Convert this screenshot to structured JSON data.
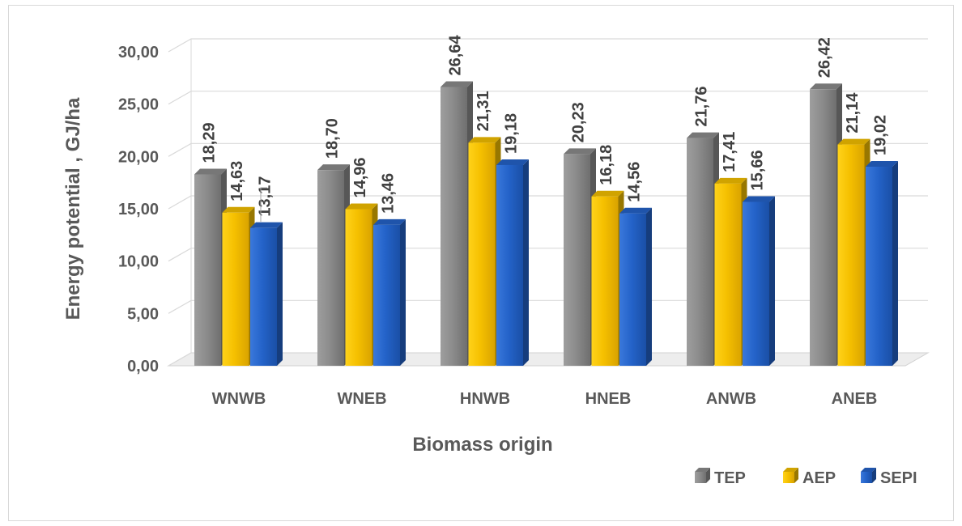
{
  "chart_data": {
    "type": "bar",
    "title": "",
    "xlabel": "Biomass origin",
    "ylabel": "Energy potential , GJ/ha",
    "ylim": [
      0,
      30
    ],
    "yticks": [
      "0,00",
      "5,00",
      "10,00",
      "15,00",
      "20,00",
      "25,00",
      "30,00"
    ],
    "grid": true,
    "legend_position": "bottom-right",
    "categories": [
      "WNWB",
      "WNEB",
      "HNWB",
      "HNEB",
      "ANWB",
      "ANEB"
    ],
    "series": [
      {
        "name": "TEP",
        "color": "#8c8c8c",
        "values": [
          18.29,
          18.7,
          26.64,
          20.23,
          21.76,
          26.42
        ],
        "labels": [
          "18,29",
          "18,70",
          "26,64",
          "20,23",
          "21,76",
          "26,42"
        ]
      },
      {
        "name": "AEP",
        "color": "#f5c000",
        "values": [
          14.63,
          14.96,
          21.31,
          16.18,
          17.41,
          21.14
        ],
        "labels": [
          "14,63",
          "14,96",
          "21,31",
          "16,18",
          "17,41",
          "21,14"
        ]
      },
      {
        "name": "SEPI",
        "color": "#2463c9",
        "values": [
          13.17,
          13.46,
          19.18,
          14.56,
          15.66,
          19.02
        ],
        "labels": [
          "13,17",
          "13,46",
          "19,18",
          "14,56",
          "15,66",
          "19,02"
        ]
      }
    ]
  }
}
